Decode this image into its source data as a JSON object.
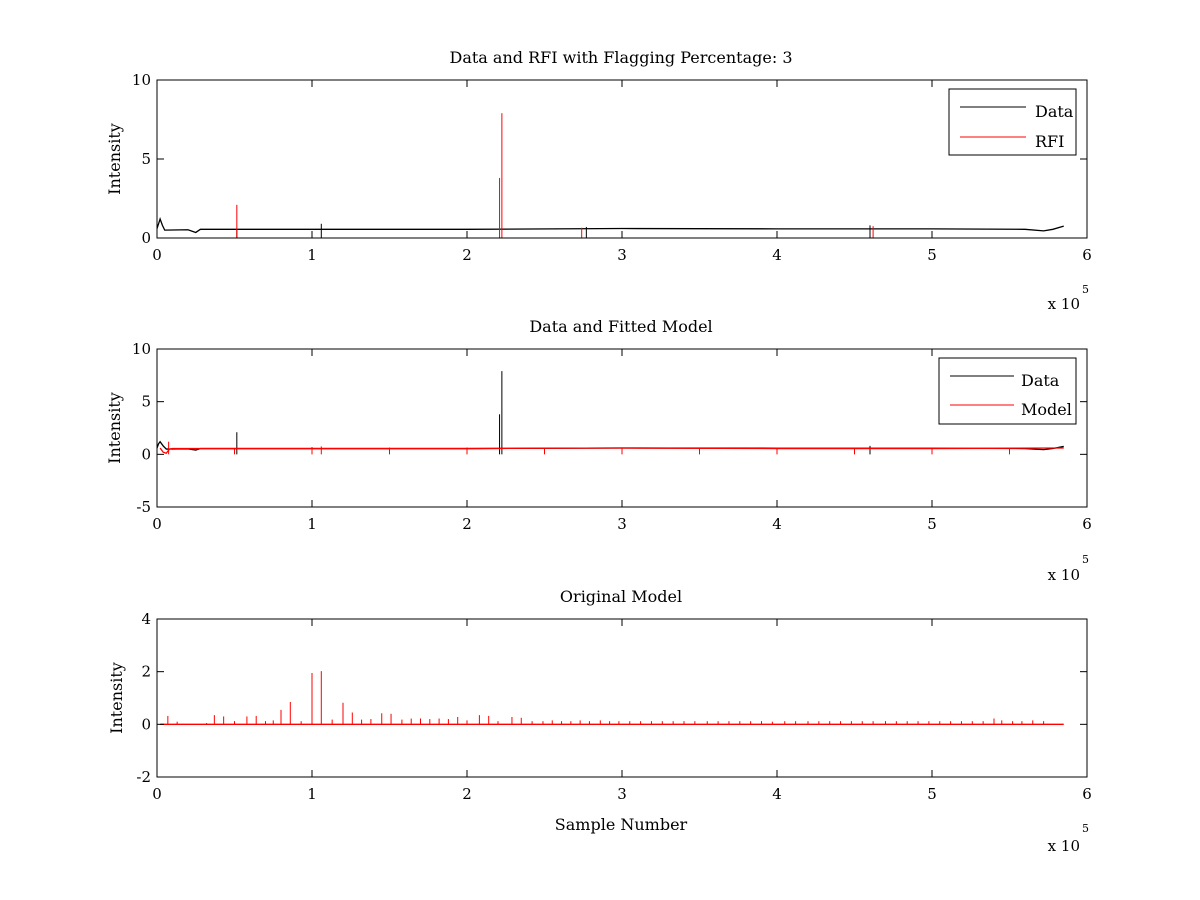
{
  "chart_data": [
    {
      "type": "line",
      "title": "Data and RFI with Flagging Percentage: 3",
      "xlabel": "",
      "ylabel": "Intensity",
      "xlim": [
        0,
        6
      ],
      "ylim": [
        0,
        10
      ],
      "x_ticks": [
        "0",
        "1",
        "2",
        "3",
        "4",
        "5",
        "6"
      ],
      "y_ticks": [
        "0",
        "5",
        "10"
      ],
      "x_multiplier": {
        "prefix": "x 10",
        "exponent": "5"
      },
      "legend": {
        "position": "top-right",
        "entries": [
          {
            "label": "Data",
            "color": "#000000"
          },
          {
            "label": "RFI",
            "color": "#ff0000"
          }
        ]
      },
      "series": [
        {
          "name": "Data",
          "color": "#000000",
          "points": [
            [
              0,
              0.6
            ],
            [
              0.01,
              0.9
            ],
            [
              0.02,
              1.2
            ],
            [
              0.035,
              0.8
            ],
            [
              0.05,
              0.5
            ],
            [
              0.2,
              0.52
            ],
            [
              0.25,
              0.35
            ],
            [
              0.28,
              0.55
            ],
            [
              1,
              0.55
            ],
            [
              2,
              0.55
            ],
            [
              3,
              0.6
            ],
            [
              4,
              0.58
            ],
            [
              5,
              0.58
            ],
            [
              5.6,
              0.55
            ],
            [
              5.72,
              0.45
            ],
            [
              5.78,
              0.55
            ],
            [
              5.85,
              0.75
            ]
          ],
          "spikes": [
            [
              0.515,
              0.6
            ],
            [
              1.06,
              0.9
            ],
            [
              2.77,
              0.7
            ],
            [
              4.6,
              0.8
            ]
          ]
        },
        {
          "name": "RFI",
          "color": "#ff0000",
          "spikes": [
            [
              0.515,
              2.1
            ],
            [
              2.21,
              3.8
            ],
            [
              2.225,
              7.9
            ],
            [
              2.74,
              0.65
            ],
            [
              4.62,
              0.75
            ]
          ]
        }
      ]
    },
    {
      "type": "line",
      "title": "Data and Fitted Model",
      "xlabel": "",
      "ylabel": "Intensity",
      "xlim": [
        0,
        6
      ],
      "ylim": [
        -5,
        10
      ],
      "x_ticks": [
        "0",
        "1",
        "2",
        "3",
        "4",
        "5",
        "6"
      ],
      "y_ticks": [
        "-5",
        "0",
        "5",
        "10"
      ],
      "x_multiplier": {
        "prefix": "x 10",
        "exponent": "5"
      },
      "legend": {
        "position": "top-right",
        "entries": [
          {
            "label": "Data",
            "color": "#000000"
          },
          {
            "label": "Model",
            "color": "#ff0000"
          }
        ]
      },
      "series": [
        {
          "name": "Data",
          "color": "#000000",
          "points": [
            [
              0,
              0.6
            ],
            [
              0.01,
              1.0
            ],
            [
              0.02,
              1.2
            ],
            [
              0.04,
              0.8
            ],
            [
              0.06,
              0.5
            ],
            [
              0.2,
              0.52
            ],
            [
              0.25,
              0.4
            ],
            [
              0.28,
              0.55
            ],
            [
              1,
              0.55
            ],
            [
              2,
              0.55
            ],
            [
              3,
              0.6
            ],
            [
              4,
              0.58
            ],
            [
              5,
              0.58
            ],
            [
              5.6,
              0.55
            ],
            [
              5.72,
              0.45
            ],
            [
              5.78,
              0.55
            ],
            [
              5.85,
              0.75
            ]
          ],
          "spikes": [
            [
              0.515,
              2.1
            ],
            [
              2.21,
              3.8
            ],
            [
              2.225,
              7.9
            ],
            [
              4.6,
              0.8
            ]
          ]
        },
        {
          "name": "Model",
          "color": "#ff0000",
          "points": [
            [
              0.02,
              0.6
            ],
            [
              0.04,
              0.2
            ],
            [
              0.06,
              0.1
            ],
            [
              0.08,
              0.5
            ],
            [
              0.1,
              0.55
            ],
            [
              1,
              0.55
            ],
            [
              2,
              0.55
            ],
            [
              3,
              0.6
            ],
            [
              4,
              0.55
            ],
            [
              5,
              0.55
            ],
            [
              5.85,
              0.6
            ]
          ],
          "spikes": [
            [
              0.075,
              1.2
            ],
            [
              0.5,
              0.6
            ],
            [
              1.0,
              0.7
            ],
            [
              1.06,
              0.75
            ],
            [
              1.5,
              0.65
            ],
            [
              2.0,
              0.65
            ],
            [
              2.5,
              0.65
            ],
            [
              3.0,
              0.65
            ],
            [
              3.5,
              0.6
            ],
            [
              4.0,
              0.6
            ],
            [
              4.5,
              0.6
            ],
            [
              5.0,
              0.6
            ],
            [
              5.5,
              0.6
            ]
          ]
        }
      ]
    },
    {
      "type": "line",
      "title": "Original Model",
      "xlabel": "Sample Number",
      "ylabel": "Intensity",
      "xlim": [
        0,
        6
      ],
      "ylim": [
        -2,
        4
      ],
      "x_ticks": [
        "0",
        "1",
        "2",
        "3",
        "4",
        "5",
        "6"
      ],
      "y_ticks": [
        "-2",
        "0",
        "2",
        "4"
      ],
      "x_multiplier": {
        "prefix": "x 10",
        "exponent": "5"
      },
      "series": [
        {
          "name": "",
          "color": "#ff0000",
          "points": [
            [
              0.02,
              0
            ],
            [
              5.85,
              0
            ]
          ],
          "spikes": [
            [
              0.07,
              0.32
            ],
            [
              0.13,
              0.1
            ],
            [
              0.32,
              0.05
            ],
            [
              0.37,
              0.35
            ],
            [
              0.43,
              0.3
            ],
            [
              0.5,
              0.12
            ],
            [
              0.58,
              0.3
            ],
            [
              0.64,
              0.32
            ],
            [
              0.7,
              0.12
            ],
            [
              0.75,
              0.15
            ],
            [
              0.8,
              0.55
            ],
            [
              0.86,
              0.85
            ],
            [
              0.93,
              0.12
            ],
            [
              1.0,
              1.95
            ],
            [
              1.06,
              2.02
            ],
            [
              1.13,
              0.18
            ],
            [
              1.2,
              0.82
            ],
            [
              1.26,
              0.45
            ],
            [
              1.32,
              0.18
            ],
            [
              1.38,
              0.2
            ],
            [
              1.45,
              0.42
            ],
            [
              1.51,
              0.4
            ],
            [
              1.58,
              0.18
            ],
            [
              1.64,
              0.22
            ],
            [
              1.7,
              0.22
            ],
            [
              1.76,
              0.2
            ],
            [
              1.82,
              0.22
            ],
            [
              1.88,
              0.2
            ],
            [
              1.94,
              0.28
            ],
            [
              2.0,
              0.15
            ],
            [
              2.08,
              0.35
            ],
            [
              2.14,
              0.32
            ],
            [
              2.2,
              0.12
            ],
            [
              2.29,
              0.28
            ],
            [
              2.35,
              0.25
            ],
            [
              2.42,
              0.12
            ],
            [
              2.49,
              0.12
            ],
            [
              2.55,
              0.15
            ],
            [
              2.61,
              0.12
            ],
            [
              2.67,
              0.12
            ],
            [
              2.73,
              0.15
            ],
            [
              2.79,
              0.12
            ],
            [
              2.86,
              0.15
            ],
            [
              2.92,
              0.12
            ],
            [
              2.98,
              0.12
            ],
            [
              3.05,
              0.12
            ],
            [
              3.12,
              0.12
            ],
            [
              3.19,
              0.12
            ],
            [
              3.26,
              0.12
            ],
            [
              3.33,
              0.12
            ],
            [
              3.4,
              0.12
            ],
            [
              3.47,
              0.12
            ],
            [
              3.55,
              0.12
            ],
            [
              3.62,
              0.12
            ],
            [
              3.69,
              0.12
            ],
            [
              3.76,
              0.12
            ],
            [
              3.83,
              0.12
            ],
            [
              3.9,
              0.12
            ],
            [
              3.97,
              0.1
            ],
            [
              4.05,
              0.12
            ],
            [
              4.12,
              0.12
            ],
            [
              4.2,
              0.12
            ],
            [
              4.27,
              0.12
            ],
            [
              4.34,
              0.12
            ],
            [
              4.41,
              0.12
            ],
            [
              4.48,
              0.12
            ],
            [
              4.55,
              0.12
            ],
            [
              4.62,
              0.12
            ],
            [
              4.7,
              0.12
            ],
            [
              4.77,
              0.12
            ],
            [
              4.84,
              0.12
            ],
            [
              4.91,
              0.12
            ],
            [
              4.98,
              0.12
            ],
            [
              5.05,
              0.12
            ],
            [
              5.12,
              0.12
            ],
            [
              5.19,
              0.12
            ],
            [
              5.26,
              0.12
            ],
            [
              5.33,
              0.12
            ],
            [
              5.4,
              0.22
            ],
            [
              5.45,
              0.15
            ],
            [
              5.52,
              0.12
            ],
            [
              5.58,
              0.12
            ],
            [
              5.65,
              0.15
            ],
            [
              5.72,
              0.12
            ]
          ]
        }
      ]
    }
  ]
}
